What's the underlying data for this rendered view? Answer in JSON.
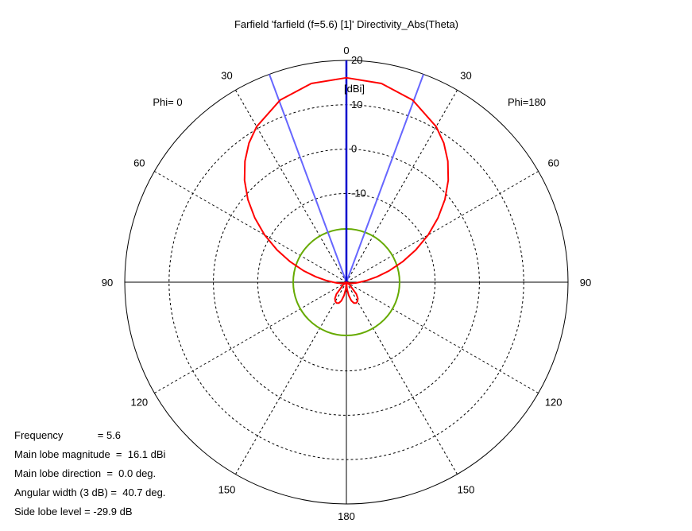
{
  "chart_data": {
    "type": "polar",
    "title": "Farfield 'farfield (f=5.6) [1]' Directivity_Abs(Theta)",
    "unit_label": "[dBi]",
    "radial_range_db": [
      -30,
      20
    ],
    "radial_ticks": [
      "20",
      "10",
      "0",
      "-10"
    ],
    "radial_tick_values": [
      20,
      10,
      0,
      -10
    ],
    "angular_labels": [
      {
        "angle": 0,
        "side": "center",
        "text": "0"
      },
      {
        "angle": 30,
        "side": "left",
        "text": "30"
      },
      {
        "angle": 30,
        "side": "right",
        "text": "30"
      },
      {
        "angle": 60,
        "side": "left",
        "text": "60"
      },
      {
        "angle": 60,
        "side": "right",
        "text": "60"
      },
      {
        "angle": 90,
        "side": "left",
        "text": "90"
      },
      {
        "angle": 90,
        "side": "right",
        "text": "90"
      },
      {
        "angle": 120,
        "side": "left",
        "text": "120"
      },
      {
        "angle": 120,
        "side": "right",
        "text": "120"
      },
      {
        "angle": 150,
        "side": "left",
        "text": "150"
      },
      {
        "angle": 150,
        "side": "right",
        "text": "150"
      },
      {
        "angle": 180,
        "side": "center",
        "text": "180"
      }
    ],
    "phi_labels": {
      "left": "Phi=  0",
      "right": "Phi=180"
    },
    "grid": true,
    "main_lobe": {
      "direction_deg": 0,
      "magnitude_dbi": 16.1,
      "beamwidth_deg": 40.7
    },
    "side_lobe_level_db": -29.9,
    "series": [
      {
        "theta_deg": [
          0,
          10,
          20,
          30,
          35,
          40,
          45,
          50,
          55,
          60,
          65,
          70,
          75,
          80,
          85,
          90,
          95,
          100,
          110,
          120,
          125,
          130,
          140,
          145,
          150,
          155,
          160,
          165,
          170,
          175,
          180
        ],
        "directivity_dbi": [
          16.1,
          15.5,
          13.7,
          10.5,
          8.3,
          5.6,
          2.5,
          -1.0,
          -4.8,
          -8.7,
          -12.7,
          -16.5,
          -20.0,
          -23.0,
          -25.4,
          -27.0,
          -27.9,
          -28.6,
          -29.3,
          -29.8,
          -29.9,
          -29.0,
          -26.5,
          -25.5,
          -25.0,
          -24.8,
          -25.0,
          -25.7,
          -27.0,
          -28.5,
          -30.0
        ],
        "color": "#ff0000"
      }
    ],
    "beamwidth_lines": {
      "angles_deg": [
        -20.35,
        20.35
      ],
      "color": "#6666ff"
    },
    "main_lobe_line": {
      "angle_deg": 0,
      "color": "#0000cc"
    },
    "reference_circle": {
      "level_db": -18,
      "color": "#66aa00"
    }
  },
  "info": [
    "Frequency            = 5.6",
    "Main lobe magnitude  =  16.1 dBi",
    "Main lobe direction  =  0.0 deg.",
    "Angular width (3 dB) =  40.7 deg.",
    "Side lobe level = -29.9 dB"
  ]
}
